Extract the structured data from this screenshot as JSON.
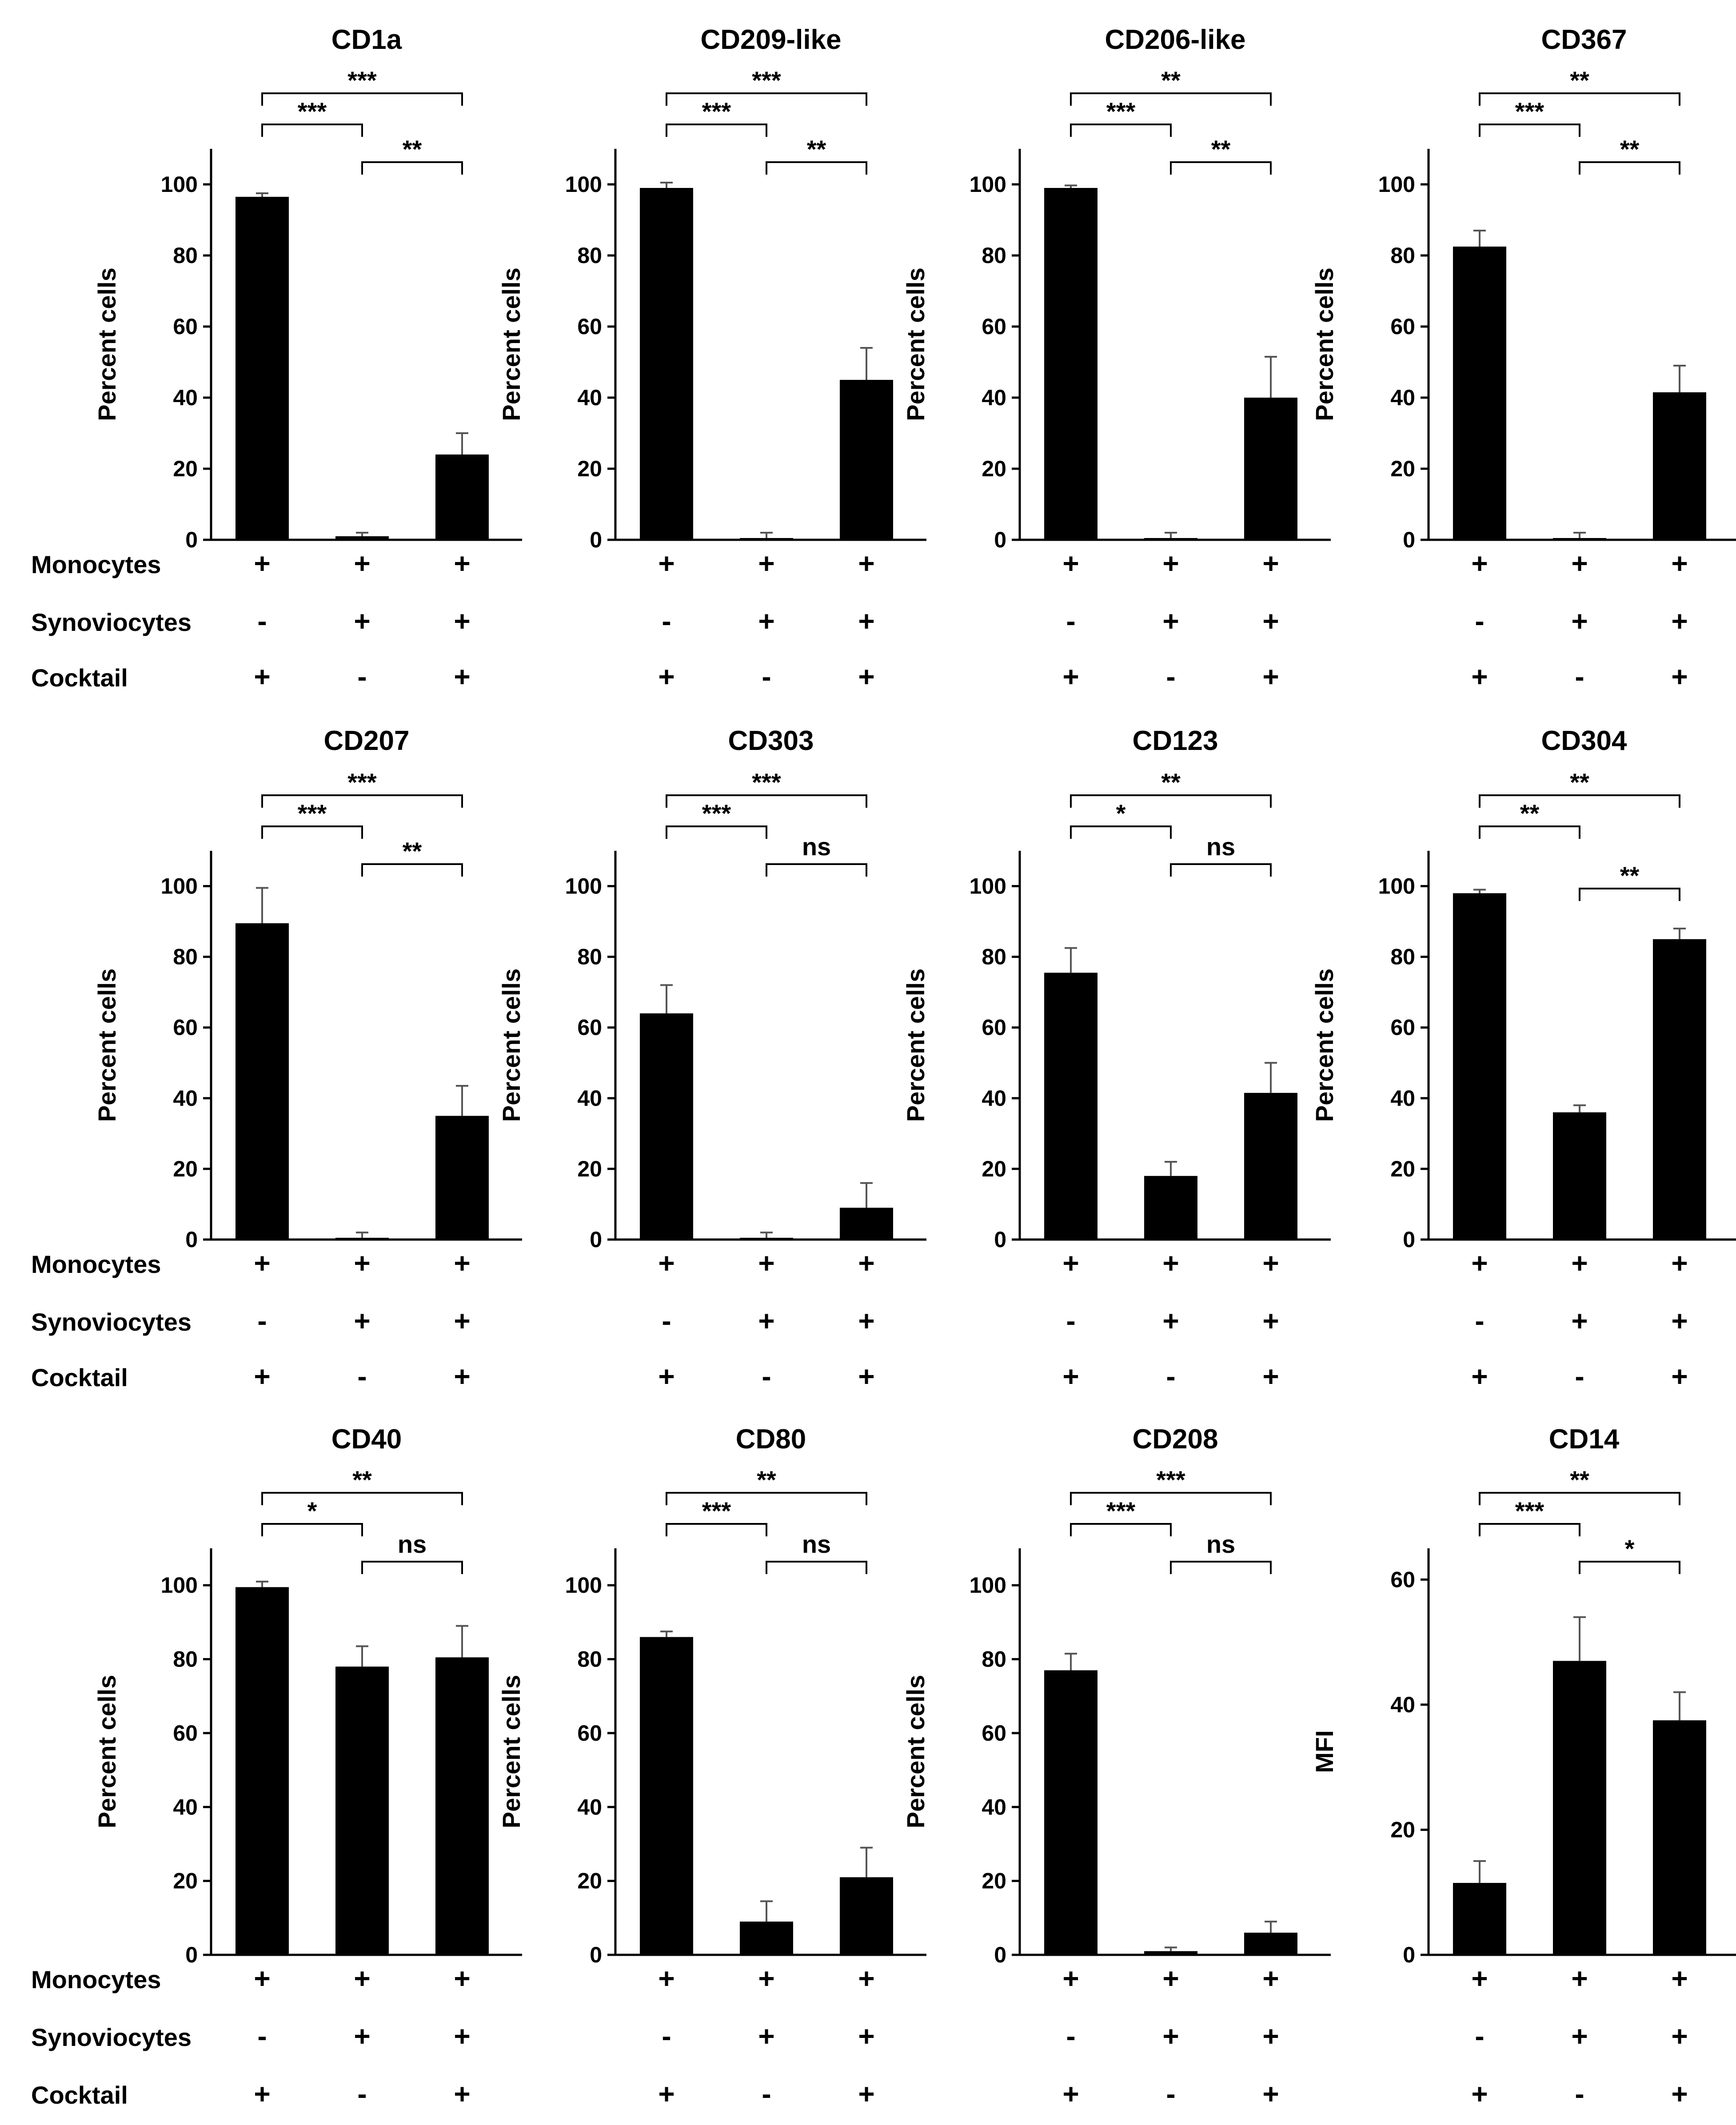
{
  "figure": {
    "row_labels": [
      "Monocytes",
      "Synoviocytes",
      "Cocktail"
    ],
    "conditions": [
      [
        "+",
        "-",
        "+"
      ],
      [
        "+",
        "+",
        "-"
      ],
      [
        "+",
        "+",
        "+"
      ]
    ]
  },
  "chart_data": [
    {
      "type": "bar",
      "title": "CD1a",
      "ylabel": "Percent cells",
      "ylim": [
        0,
        110
      ],
      "yticks": [
        0,
        20,
        40,
        60,
        80,
        100
      ],
      "values": [
        96.5,
        1,
        24
      ],
      "errors": [
        1,
        1,
        6
      ],
      "significance": [
        {
          "from": 0,
          "to": 1,
          "label": "***"
        },
        {
          "from": 0,
          "to": 2,
          "label": "***"
        },
        {
          "from": 1,
          "to": 2,
          "label": "**"
        }
      ]
    },
    {
      "type": "bar",
      "title": "CD209-like",
      "ylabel": "Percent cells",
      "ylim": [
        0,
        110
      ],
      "yticks": [
        0,
        20,
        40,
        60,
        80,
        100
      ],
      "values": [
        99,
        0.5,
        45
      ],
      "errors": [
        1.5,
        1.5,
        9
      ],
      "significance": [
        {
          "from": 0,
          "to": 1,
          "label": "***"
        },
        {
          "from": 0,
          "to": 2,
          "label": "***"
        },
        {
          "from": 1,
          "to": 2,
          "label": "**"
        }
      ]
    },
    {
      "type": "bar",
      "title": "CD206-like",
      "ylabel": "Percent cells",
      "ylim": [
        0,
        110
      ],
      "yticks": [
        0,
        20,
        40,
        60,
        80,
        100
      ],
      "values": [
        99,
        0.5,
        40
      ],
      "errors": [
        0.7,
        1.5,
        11.5
      ],
      "significance": [
        {
          "from": 0,
          "to": 1,
          "label": "***"
        },
        {
          "from": 0,
          "to": 2,
          "label": "**"
        },
        {
          "from": 1,
          "to": 2,
          "label": "**"
        }
      ]
    },
    {
      "type": "bar",
      "title": "CD367",
      "ylabel": "Percent cells",
      "ylim": [
        0,
        110
      ],
      "yticks": [
        0,
        20,
        40,
        60,
        80,
        100
      ],
      "values": [
        82.5,
        0.5,
        41.5
      ],
      "errors": [
        4.5,
        1.5,
        7.5
      ],
      "significance": [
        {
          "from": 0,
          "to": 1,
          "label": "***"
        },
        {
          "from": 0,
          "to": 2,
          "label": "**"
        },
        {
          "from": 1,
          "to": 2,
          "label": "**"
        }
      ]
    },
    {
      "type": "bar",
      "title": "CD207",
      "ylabel": "Percent cells",
      "ylim": [
        0,
        110
      ],
      "yticks": [
        0,
        20,
        40,
        60,
        80,
        100
      ],
      "values": [
        89.5,
        0.5,
        35
      ],
      "errors": [
        10,
        1.5,
        8.5
      ],
      "significance": [
        {
          "from": 0,
          "to": 1,
          "label": "***"
        },
        {
          "from": 0,
          "to": 2,
          "label": "***"
        },
        {
          "from": 1,
          "to": 2,
          "label": "**"
        }
      ]
    },
    {
      "type": "bar",
      "title": "CD303",
      "ylabel": "Percent cells",
      "ylim": [
        0,
        110
      ],
      "yticks": [
        0,
        20,
        40,
        60,
        80,
        100
      ],
      "values": [
        64,
        0.5,
        9
      ],
      "errors": [
        8,
        1.5,
        7
      ],
      "significance": [
        {
          "from": 0,
          "to": 1,
          "label": "***"
        },
        {
          "from": 0,
          "to": 2,
          "label": "***"
        },
        {
          "from": 1,
          "to": 2,
          "label": "ns"
        }
      ]
    },
    {
      "type": "bar",
      "title": "CD123",
      "ylabel": "Percent cells",
      "ylim": [
        0,
        110
      ],
      "yticks": [
        0,
        20,
        40,
        60,
        80,
        100
      ],
      "values": [
        75.5,
        18,
        41.5
      ],
      "errors": [
        7,
        4,
        8.5
      ],
      "significance": [
        {
          "from": 0,
          "to": 1,
          "label": "*"
        },
        {
          "from": 0,
          "to": 2,
          "label": "**"
        },
        {
          "from": 1,
          "to": 2,
          "label": "ns"
        }
      ]
    },
    {
      "type": "bar",
      "title": "CD304",
      "ylabel": "Percent cells",
      "ylim": [
        0,
        110
      ],
      "yticks": [
        0,
        20,
        40,
        60,
        80,
        100
      ],
      "values": [
        98,
        36,
        85
      ],
      "errors": [
        1,
        2,
        3
      ],
      "significance": [
        {
          "from": 0,
          "to": 1,
          "label": "**"
        },
        {
          "from": 0,
          "to": 2,
          "label": "**"
        },
        {
          "from": 1,
          "to": 2,
          "label": "**"
        }
      ]
    },
    {
      "type": "bar",
      "title": "CD40",
      "ylabel": "Percent cells",
      "ylim": [
        0,
        110
      ],
      "yticks": [
        0,
        20,
        40,
        60,
        80,
        100
      ],
      "values": [
        99.5,
        78,
        80.5
      ],
      "errors": [
        1.5,
        5.5,
        8.5
      ],
      "significance": [
        {
          "from": 0,
          "to": 1,
          "label": "*"
        },
        {
          "from": 0,
          "to": 2,
          "label": "**"
        },
        {
          "from": 1,
          "to": 2,
          "label": "ns"
        }
      ]
    },
    {
      "type": "bar",
      "title": "CD80",
      "ylabel": "Percent cells",
      "ylim": [
        0,
        110
      ],
      "yticks": [
        0,
        20,
        40,
        60,
        80,
        100
      ],
      "values": [
        86,
        9,
        21
      ],
      "errors": [
        1.5,
        5.5,
        8
      ],
      "significance": [
        {
          "from": 0,
          "to": 1,
          "label": "***"
        },
        {
          "from": 0,
          "to": 2,
          "label": "**"
        },
        {
          "from": 1,
          "to": 2,
          "label": "ns"
        }
      ]
    },
    {
      "type": "bar",
      "title": "CD208",
      "ylabel": "Percent cells",
      "ylim": [
        0,
        110
      ],
      "yticks": [
        0,
        20,
        40,
        60,
        80,
        100
      ],
      "values": [
        77,
        1,
        6
      ],
      "errors": [
        4.5,
        1,
        3
      ],
      "significance": [
        {
          "from": 0,
          "to": 1,
          "label": "***"
        },
        {
          "from": 0,
          "to": 2,
          "label": "***"
        },
        {
          "from": 1,
          "to": 2,
          "label": "ns"
        }
      ]
    },
    {
      "type": "bar",
      "title": "CD14",
      "ylabel": "MFI",
      "ylim": [
        0,
        65
      ],
      "yticks": [
        0,
        20,
        40,
        60
      ],
      "values": [
        11.5,
        47,
        37.5
      ],
      "errors": [
        3.5,
        7,
        4.5
      ],
      "significance": [
        {
          "from": 0,
          "to": 1,
          "label": "***"
        },
        {
          "from": 0,
          "to": 2,
          "label": "**"
        },
        {
          "from": 1,
          "to": 2,
          "label": "*"
        }
      ]
    }
  ]
}
